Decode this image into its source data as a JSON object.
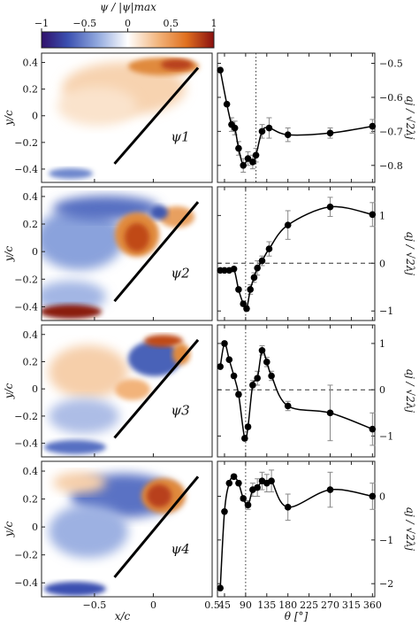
{
  "colorbar": {
    "title": "ψ / |ψ|max",
    "ticks": [
      "−1",
      "−0.5",
      "0",
      "0.5",
      "1"
    ],
    "tick_values": [
      -1,
      -0.5,
      0,
      0.5,
      1
    ]
  },
  "left_axes": {
    "ylabel": "y/c",
    "xlabel": "x/c",
    "yticks": [
      "0.4",
      "0.2",
      "0",
      "−0.2",
      "−0.4"
    ],
    "ytick_values": [
      0.4,
      0.2,
      0,
      -0.2,
      -0.4
    ],
    "xticks": [
      "−0.5",
      "0",
      "0.5"
    ],
    "xtick_values": [
      -0.5,
      0,
      0.5
    ],
    "xlim": [
      -0.95,
      0.5
    ],
    "ylim": [
      -0.5,
      0.47
    ]
  },
  "right_axes": {
    "xlabel": "θ [°]",
    "xticks": [
      "45",
      "90",
      "135",
      "180",
      "225",
      "270",
      "315",
      "360"
    ],
    "xtick_values": [
      45,
      90,
      135,
      180,
      225,
      270,
      315,
      360
    ]
  },
  "panels": [
    {
      "mode_label": "ψ1",
      "ylabel": "aj / √2λj",
      "colors": {
        "dominant": "#e8a060"
      },
      "chart_data": {
        "type": "line",
        "x": [
          36,
          50,
          60,
          67,
          75,
          85,
          95,
          105,
          112,
          125,
          140,
          180,
          270,
          360
        ],
        "y": [
          -0.52,
          -0.62,
          -0.68,
          -0.69,
          -0.75,
          -0.8,
          -0.78,
          -0.79,
          -0.77,
          -0.7,
          -0.69,
          -0.71,
          -0.705,
          -0.685
        ],
        "err": [
          0,
          0,
          0.02,
          0.02,
          0.02,
          0.02,
          0.02,
          0.02,
          0.02,
          0.02,
          0.03,
          0.02,
          0.015,
          0.02
        ],
        "ylim": [
          -0.85,
          -0.47
        ],
        "yticks": [
          "−0.5",
          "−0.6",
          "−0.7",
          "−0.8"
        ],
        "ytick_values": [
          -0.5,
          -0.6,
          -0.7,
          -0.8
        ],
        "vline": 112,
        "hline": null
      }
    },
    {
      "mode_label": "ψ2",
      "ylabel": "aj / √2λj",
      "colors": {
        "dominant": "#c0392b"
      },
      "chart_data": {
        "type": "line",
        "x": [
          36,
          45,
          55,
          65,
          75,
          85,
          92,
          100,
          108,
          115,
          125,
          140,
          180,
          270,
          360
        ],
        "y": [
          -0.15,
          -0.15,
          -0.15,
          -0.12,
          -0.55,
          -0.85,
          -0.95,
          -0.55,
          -0.3,
          -0.1,
          0.05,
          0.3,
          0.8,
          1.18,
          1.02
        ],
        "err": [
          0,
          0,
          0,
          0,
          0,
          0.05,
          0.05,
          0.1,
          0.1,
          0.15,
          0.1,
          0.15,
          0.3,
          0.2,
          0.25
        ],
        "ylim": [
          -1.2,
          1.6
        ],
        "yticks": [
          "1",
          "0",
          "−1"
        ],
        "ytick_values": [
          1,
          0,
          -1
        ],
        "vline": 90,
        "hline": 0
      }
    },
    {
      "mode_label": "ψ3",
      "ylabel": "aj / √2λj",
      "colors": {
        "dominant": "#2e4aa0"
      },
      "chart_data": {
        "type": "line",
        "x": [
          36,
          45,
          55,
          65,
          75,
          88,
          95,
          105,
          115,
          125,
          135,
          145,
          180,
          270,
          360
        ],
        "y": [
          0.5,
          1.0,
          0.65,
          0.3,
          -0.1,
          -1.05,
          -0.8,
          0.1,
          0.25,
          0.85,
          0.6,
          0.3,
          -0.35,
          -0.5,
          -0.85
        ],
        "err": [
          0,
          0,
          0,
          0,
          0.05,
          0.05,
          0.05,
          0.1,
          0.15,
          0.1,
          0.1,
          0.1,
          0.1,
          0.6,
          0.35
        ],
        "ylim": [
          -1.45,
          1.4
        ],
        "yticks": [
          "1",
          "0",
          "−1"
        ],
        "ytick_values": [
          1,
          0,
          -1
        ],
        "vline": 90,
        "hline": 0
      }
    },
    {
      "mode_label": "ψ4",
      "ylabel": "aj / √2λj",
      "colors": {
        "dominant": "#c0392b"
      },
      "chart_data": {
        "type": "line",
        "x": [
          36,
          45,
          55,
          65,
          75,
          85,
          95,
          105,
          115,
          125,
          135,
          145,
          180,
          270,
          360
        ],
        "y": [
          -2.1,
          -0.35,
          0.3,
          0.45,
          0.3,
          -0.05,
          -0.2,
          0.15,
          0.2,
          0.35,
          0.3,
          0.35,
          -0.25,
          0.15,
          0.0
        ],
        "err": [
          0,
          0,
          0,
          0.05,
          0.05,
          0.05,
          0.1,
          0.15,
          0.2,
          0.2,
          0.2,
          0.25,
          0.3,
          0.4,
          0.3
        ],
        "ylim": [
          -2.3,
          0.8
        ],
        "yticks": [
          "0",
          "−1",
          "−2"
        ],
        "ytick_values": [
          0,
          -1,
          -2
        ],
        "vline": 90,
        "hline": null
      }
    }
  ]
}
